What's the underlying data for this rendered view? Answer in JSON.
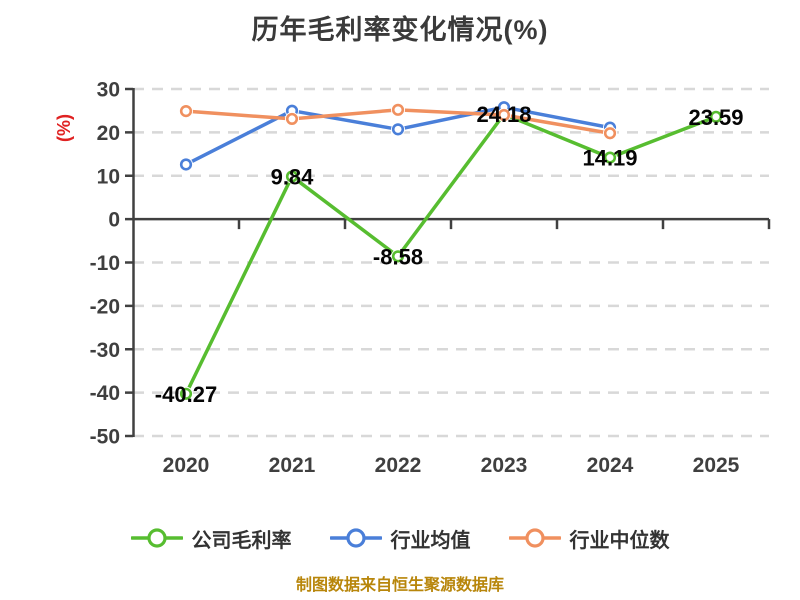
{
  "title": "历年毛利率变化情况(%)",
  "footer": "制图数据来自恒生聚源数据库",
  "chart_data": {
    "type": "line",
    "title": "历年毛利率变化情况(%)",
    "ylabel": "(%)",
    "xlabel": "",
    "categories": [
      "2020",
      "2021",
      "2022",
      "2023",
      "2024",
      "2025"
    ],
    "ylim": [
      -50,
      30
    ],
    "yticks": [
      30,
      20,
      10,
      0,
      -10,
      -20,
      -30,
      -40,
      -50
    ],
    "grid": "horizontal-dashed",
    "legend_position": "bottom",
    "series": [
      {
        "key": "company-gross-margin",
        "name": "公司毛利率",
        "color": "#57bd30",
        "values": [
          -40.27,
          9.84,
          -8.58,
          24.18,
          14.19,
          23.59
        ],
        "labels": [
          "-40.27",
          "9.84",
          "-8.58",
          "24.18",
          "14.19",
          "23.59"
        ],
        "show_labels": true
      },
      {
        "key": "industry-average",
        "name": "行业均值",
        "color": "#4a7fd9",
        "values": [
          12.6,
          25.0,
          20.7,
          25.8,
          21.1,
          null
        ],
        "labels": [],
        "show_labels": false
      },
      {
        "key": "industry-median",
        "name": "行业中位数",
        "color": "#f0905f",
        "values": [
          24.9,
          23.1,
          25.2,
          24.0,
          19.8,
          null
        ],
        "labels": [],
        "show_labels": false
      }
    ],
    "colors": {
      "axis": "#404040",
      "grid": "#d8d8d8",
      "tick_label": "#3f3f3f",
      "data_label": "#050505",
      "ylabel": "#e02222",
      "title": "#3a3a3a",
      "footer": "#b8860b",
      "marker_fill": "#ffffff"
    }
  }
}
